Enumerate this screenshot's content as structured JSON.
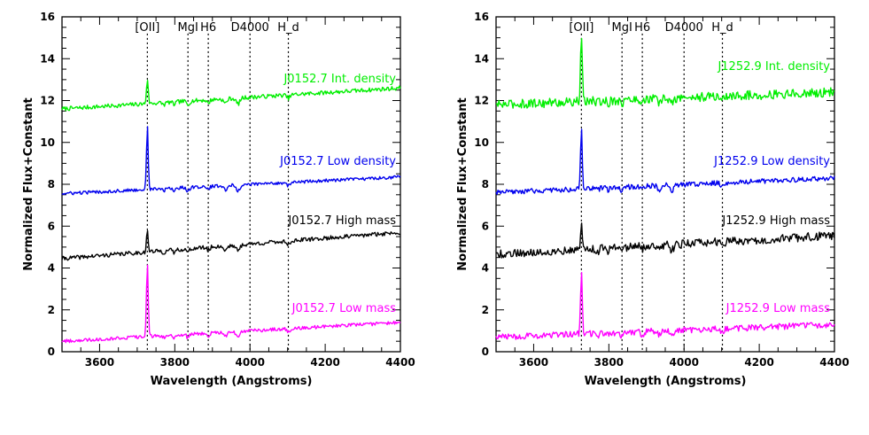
{
  "chart_data": [
    {
      "type": "line",
      "title": "",
      "xlabel": "Wavelength (Angstroms)",
      "ylabel": "Normalized Flux+Constant",
      "xlim": [
        3500,
        4400
      ],
      "ylim": [
        0,
        16
      ],
      "xticks": [
        3600,
        3800,
        4000,
        4200,
        4400
      ],
      "yticks": [
        0,
        2,
        4,
        6,
        8,
        10,
        12,
        14,
        16
      ],
      "grid": false,
      "feature_lines": [
        {
          "label": "[OII]",
          "x": 3727
        },
        {
          "label": "MgI",
          "x": 3835
        },
        {
          "label": "H6",
          "x": 3889
        },
        {
          "label": "D4000",
          "x": 4000
        },
        {
          "label": "H_d",
          "x": 4102
        }
      ],
      "series": [
        {
          "name": "J0152.7 Int. density",
          "color": "#00ee00",
          "baseline": 11.6,
          "slope": 1.0,
          "peak": 1.2,
          "noise": 0.1,
          "x": [
            3500,
            3600,
            3700,
            3727,
            3800,
            3900,
            4000,
            4100,
            4200,
            4300,
            4400
          ],
          "y": [
            11.55,
            11.6,
            11.7,
            12.8,
            11.8,
            12.0,
            12.3,
            12.4,
            12.4,
            12.5,
            12.55
          ]
        },
        {
          "name": "J0152.7 Low density",
          "color": "#0000ee",
          "baseline": 7.55,
          "slope": 0.8,
          "peak": 3.0,
          "noise": 0.08,
          "x": [
            3500,
            3600,
            3700,
            3727,
            3800,
            3900,
            4000,
            4100,
            4200,
            4300,
            4400
          ],
          "y": [
            7.5,
            7.6,
            7.7,
            10.6,
            7.9,
            8.0,
            8.2,
            8.2,
            8.25,
            8.3,
            8.35
          ]
        },
        {
          "name": "J0152.7 High mass",
          "color": "#000000",
          "baseline": 4.45,
          "slope": 1.25,
          "peak": 1.0,
          "noise": 0.1,
          "x": [
            3500,
            3600,
            3700,
            3727,
            3800,
            3900,
            4000,
            4100,
            4200,
            4300,
            4400
          ],
          "y": [
            4.4,
            4.5,
            4.6,
            5.5,
            4.7,
            4.9,
            5.3,
            5.5,
            5.6,
            5.6,
            5.7
          ]
        },
        {
          "name": "J0152.7 Low mass",
          "color": "#ff00ff",
          "baseline": 0.5,
          "slope": 0.9,
          "peak": 3.5,
          "noise": 0.08,
          "x": [
            3500,
            3600,
            3700,
            3727,
            3800,
            3900,
            4000,
            4100,
            4200,
            4300,
            4400
          ],
          "y": [
            0.45,
            0.6,
            0.7,
            4.2,
            0.9,
            1.0,
            1.3,
            1.2,
            1.3,
            1.35,
            1.35
          ]
        }
      ]
    },
    {
      "type": "line",
      "title": "",
      "xlabel": "Wavelength (Angstroms)",
      "ylabel": "Normalized Flux+Constant",
      "xlim": [
        3500,
        4400
      ],
      "ylim": [
        0,
        16
      ],
      "xticks": [
        3600,
        3800,
        4000,
        4200,
        4400
      ],
      "yticks": [
        0,
        2,
        4,
        6,
        8,
        10,
        12,
        14,
        16
      ],
      "grid": false,
      "feature_lines": [
        {
          "label": "[OII]",
          "x": 3727
        },
        {
          "label": "MgI",
          "x": 3835
        },
        {
          "label": "H6",
          "x": 3889
        },
        {
          "label": "D4000",
          "x": 4000
        },
        {
          "label": "H_d",
          "x": 4102
        }
      ],
      "series": [
        {
          "name": "J1252.9 Int. density",
          "color": "#00ee00",
          "baseline": 11.8,
          "slope": 0.6,
          "peak": 3.2,
          "noise": 0.22,
          "x": [
            3500,
            3600,
            3700,
            3727,
            3800,
            3900,
            4000,
            4100,
            4200,
            4300,
            4400
          ],
          "y": [
            11.8,
            11.9,
            11.8,
            15.0,
            11.9,
            12.1,
            12.3,
            12.3,
            12.3,
            12.4,
            12.5
          ]
        },
        {
          "name": "J1252.9 Low density",
          "color": "#0000ee",
          "baseline": 7.6,
          "slope": 0.7,
          "peak": 2.8,
          "noise": 0.12,
          "x": [
            3500,
            3600,
            3700,
            3727,
            3800,
            3900,
            4000,
            4100,
            4200,
            4300,
            4400
          ],
          "y": [
            7.6,
            7.7,
            7.8,
            10.4,
            7.9,
            8.0,
            8.2,
            8.1,
            8.3,
            8.3,
            8.4
          ]
        },
        {
          "name": "J1252.9 High mass",
          "color": "#000000",
          "baseline": 4.65,
          "slope": 0.9,
          "peak": 1.2,
          "noise": 0.2,
          "x": [
            3500,
            3600,
            3700,
            3727,
            3800,
            3900,
            4000,
            4100,
            4200,
            4300,
            4400
          ],
          "y": [
            4.6,
            4.7,
            4.7,
            5.8,
            4.9,
            5.0,
            5.1,
            5.2,
            5.3,
            5.4,
            5.6
          ]
        },
        {
          "name": "J1252.9 Low mass",
          "color": "#ff00ff",
          "baseline": 0.7,
          "slope": 0.6,
          "peak": 3.0,
          "noise": 0.15,
          "x": [
            3500,
            3600,
            3700,
            3727,
            3800,
            3900,
            4000,
            4100,
            4200,
            4300,
            4400
          ],
          "y": [
            0.7,
            0.75,
            0.8,
            3.8,
            0.9,
            1.0,
            1.15,
            1.1,
            1.2,
            1.25,
            1.3
          ]
        }
      ]
    }
  ]
}
